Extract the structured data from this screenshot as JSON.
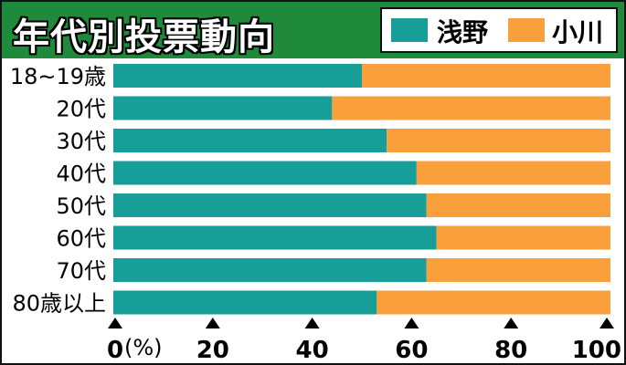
{
  "chart_data": {
    "type": "bar",
    "orientation": "horizontal",
    "stacked": true,
    "title": "年代別投票動向",
    "categories": [
      "18~19歳",
      "20代",
      "30代",
      "40代",
      "50代",
      "60代",
      "70代",
      "80歳以上"
    ],
    "series": [
      {
        "name": "浅野",
        "color": "#179e99",
        "values": [
          50,
          44,
          55,
          61,
          63,
          65,
          63,
          53
        ]
      },
      {
        "name": "小川",
        "color": "#f9a03c",
        "values": [
          50,
          56,
          45,
          39,
          37,
          35,
          37,
          47
        ]
      }
    ],
    "xlim": [
      0,
      100
    ],
    "x_ticks": [
      "0",
      "20",
      "40",
      "60",
      "80",
      "100"
    ],
    "x_unit": "(%)",
    "legend_position": "top-right",
    "grid": false
  }
}
